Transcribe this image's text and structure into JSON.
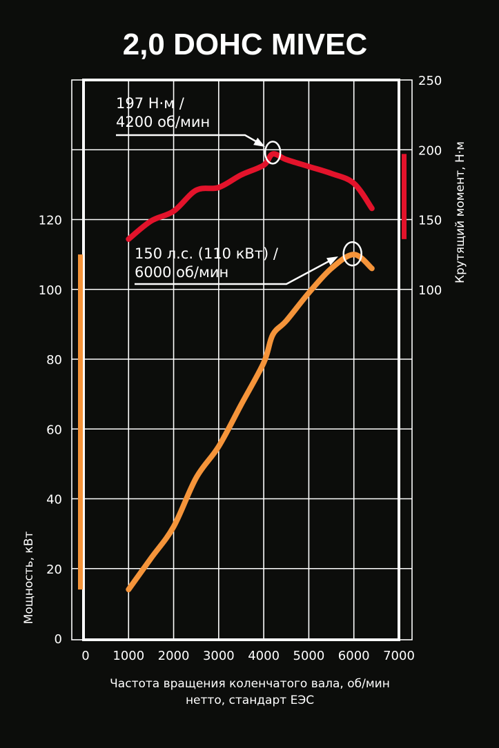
{
  "chart_data": {
    "type": "line",
    "title": "2,0 DOHC MIVEC",
    "xlabel": [
      "Частота вращения коленчатого вала, об/мин",
      "нетто, стандарт ЕЭС"
    ],
    "ylabel_left": "Мощность, кВт",
    "ylabel_right": "Крутящий момент, Н·м",
    "xlim": [
      0,
      7000
    ],
    "xticks": [
      "0",
      "1000",
      "2000",
      "3000",
      "4000",
      "5000",
      "6000",
      "7000"
    ],
    "ylim_left": [
      0,
      160
    ],
    "yticks_left": [
      "0",
      "20",
      "40",
      "60",
      "80",
      "100",
      "120"
    ],
    "ylim_right": [
      0,
      250
    ],
    "yticks_right": [
      "100",
      "150",
      "200",
      "250"
    ],
    "grid": true,
    "series": [
      {
        "key": "power",
        "axis": "left",
        "color": "#f5943a",
        "x": [
          1000,
          1500,
          2000,
          2500,
          3000,
          3500,
          4000,
          4200,
          4500,
          5000,
          5500,
          6000,
          6400
        ],
        "values": [
          14,
          23,
          32,
          46,
          55,
          67,
          79,
          87,
          91,
          99,
          106,
          110,
          106
        ]
      },
      {
        "key": "torque",
        "axis": "right",
        "color": "#e3132b",
        "x": [
          1000,
          1500,
          2000,
          2500,
          3000,
          3500,
          4000,
          4200,
          4500,
          5000,
          5500,
          6000,
          6400
        ],
        "values": [
          136,
          149,
          156,
          171,
          173,
          182,
          189,
          197,
          193,
          188,
          183,
          176,
          158
        ]
      }
    ],
    "annotations": [
      {
        "series": "torque",
        "lines": [
          "197 Н·м /",
          "4200 об/мин"
        ],
        "x": 4200,
        "y": 197
      },
      {
        "series": "power",
        "lines": [
          "150 л.с. (110 кВт) /",
          "6000 об/мин"
        ],
        "x": 6000,
        "y": 110
      }
    ]
  }
}
